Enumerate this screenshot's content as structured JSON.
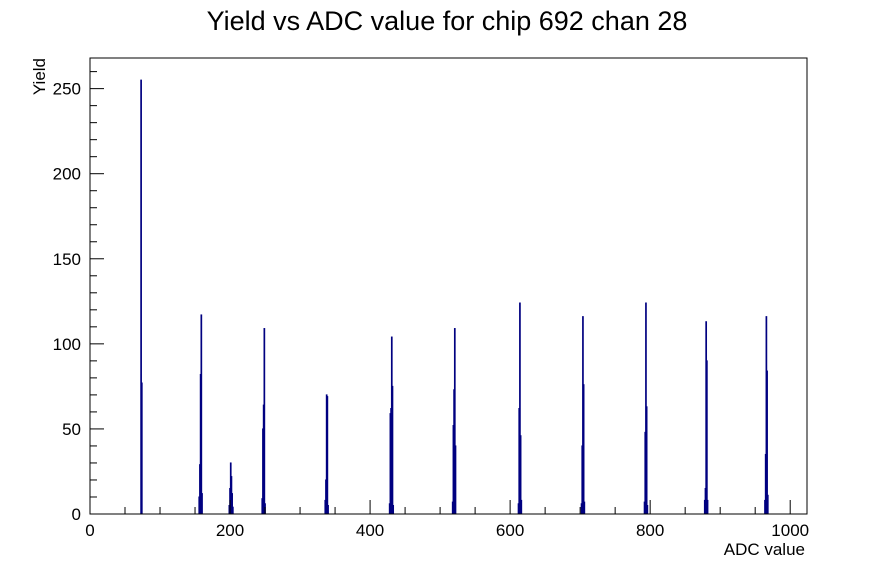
{
  "chart_data": {
    "type": "bar",
    "title": "Yield vs ADC value for chip 692 chan 28",
    "xlabel": "ADC value",
    "ylabel": "Yield",
    "xlim": [
      0,
      1024
    ],
    "ylim": [
      0,
      268
    ],
    "grid": false,
    "legend": "none",
    "x_ticks": [
      0,
      200,
      400,
      600,
      800,
      1000
    ],
    "y_ticks": [
      0,
      50,
      100,
      150,
      200,
      250
    ],
    "series": [
      {
        "color": "#000080",
        "x": [
          73,
          74,
          156,
          157,
          158,
          159,
          160,
          199,
          200,
          201,
          202,
          203,
          204,
          246,
          247,
          248,
          249,
          250,
          336,
          337,
          338,
          339,
          340,
          428,
          429,
          430,
          431,
          432,
          433,
          518,
          519,
          520,
          521,
          522,
          612,
          613,
          614,
          615,
          616,
          702,
          703,
          704,
          705,
          706,
          792,
          793,
          794,
          795,
          796,
          878,
          879,
          880,
          881,
          882,
          964,
          965,
          966,
          967,
          968
        ],
        "values": [
          255,
          77,
          10,
          29,
          82,
          117,
          12,
          5,
          15,
          30,
          22,
          12,
          4,
          9,
          50,
          64,
          109,
          6,
          8,
          20,
          70,
          69,
          5,
          6,
          59,
          62,
          104,
          75,
          5,
          7,
          52,
          73,
          109,
          40,
          6,
          62,
          124,
          46,
          8,
          6,
          40,
          116,
          76,
          7,
          7,
          48,
          124,
          63,
          5,
          8,
          15,
          113,
          90,
          8,
          8,
          35,
          116,
          84,
          11
        ]
      }
    ]
  }
}
